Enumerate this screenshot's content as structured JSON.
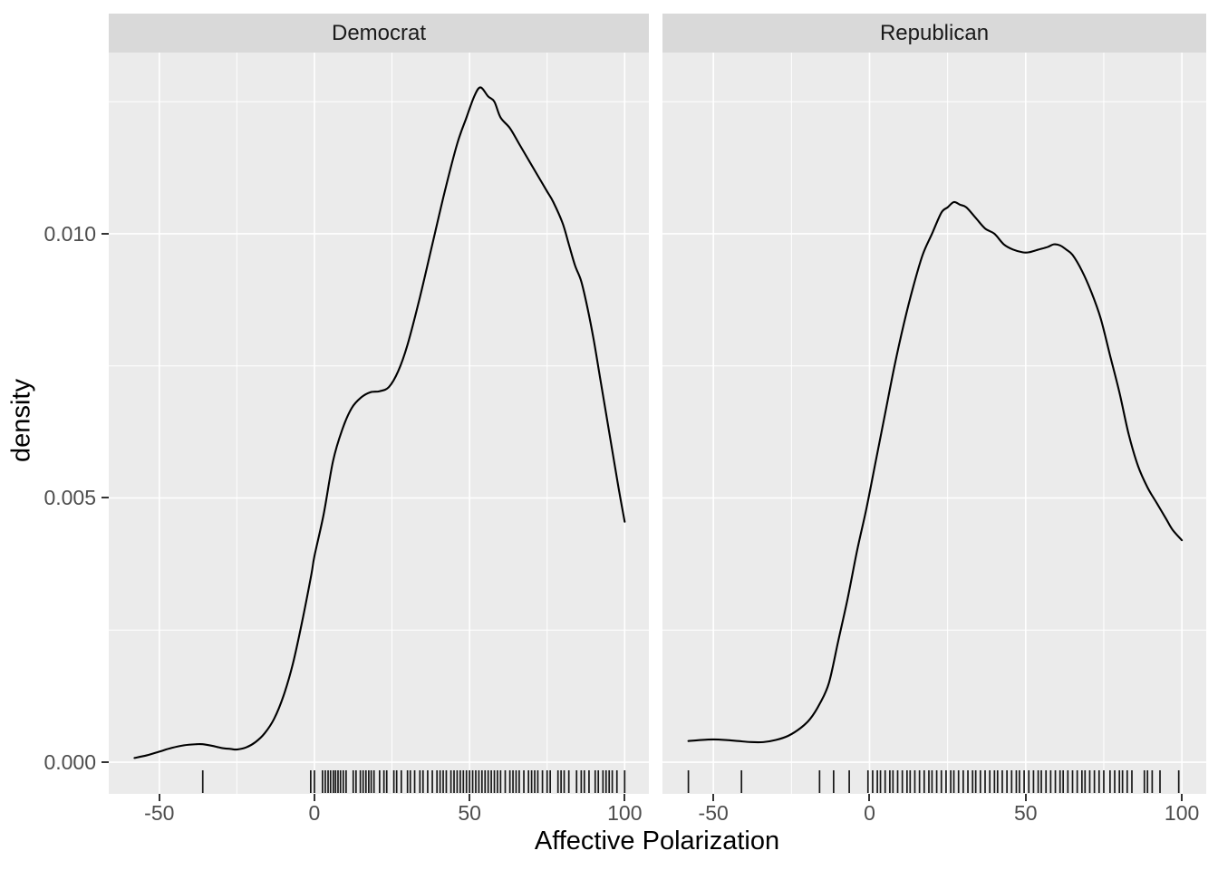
{
  "chart_data": {
    "type": "line",
    "subtype": "faceted-density-with-rug",
    "title": "",
    "xlabel": "Affective Polarization",
    "ylabel": "density",
    "grid": true,
    "legend": "none",
    "xlim": [
      -66.3,
      107.8
    ],
    "ylim": [
      -0.0006,
      0.01343
    ],
    "x_ticks": {
      "values": [
        -50,
        0,
        50,
        100
      ],
      "labels": [
        "-50",
        "0",
        "50",
        "100"
      ]
    },
    "x_minor_ticks": [
      -25,
      25,
      75
    ],
    "y_ticks": {
      "values": [
        0,
        0.005,
        0.01
      ],
      "labels": [
        "0.000",
        "0.005",
        "0.010"
      ]
    },
    "y_minor_ticks": [
      0.0025,
      0.0075,
      0.0125
    ],
    "facets": [
      {
        "label": "Democrat",
        "curve": {
          "x": [
            -58,
            -54,
            -50,
            -46,
            -42,
            -38,
            -36,
            -33,
            -30,
            -27,
            -25,
            -22,
            -19,
            -16,
            -13,
            -10,
            -7,
            -4,
            -1,
            0,
            3,
            6,
            9,
            12,
            15,
            18,
            21,
            24,
            27,
            30,
            34,
            38,
            42,
            46,
            49,
            51.5,
            53.5,
            56,
            58,
            60,
            63,
            66,
            69,
            72,
            75,
            77,
            80,
            82,
            84,
            86,
            88,
            90,
            92,
            94,
            96,
            98,
            100
          ],
          "density": [
            8e-05,
            0.00013,
            0.0002,
            0.00027,
            0.00032,
            0.00034,
            0.00034,
            0.00031,
            0.00027,
            0.00025,
            0.00024,
            0.00028,
            0.00038,
            0.00055,
            0.00082,
            0.00125,
            0.00185,
            0.00265,
            0.00355,
            0.0039,
            0.0047,
            0.0057,
            0.0063,
            0.0067,
            0.0069,
            0.007,
            0.00702,
            0.0071,
            0.0074,
            0.0079,
            0.0088,
            0.0098,
            0.0108,
            0.0117,
            0.0122,
            0.0126,
            0.01277,
            0.0126,
            0.0125,
            0.0122,
            0.012,
            0.0117,
            0.0114,
            0.0111,
            0.0108,
            0.0106,
            0.0102,
            0.0098,
            0.0094,
            0.0091,
            0.0086,
            0.008,
            0.0073,
            0.0066,
            0.0059,
            0.0052,
            0.00455
          ]
        },
        "rug": [
          -36,
          -1.2,
          0,
          2.6,
          3.5,
          4.4,
          5.2,
          6.1,
          6.8,
          7.6,
          8.4,
          9.3,
          10.2,
          12.5,
          13.4,
          14.8,
          15.7,
          16.6,
          17.5,
          18.3,
          19.2,
          21,
          22.4,
          23.3,
          25.6,
          26.5,
          28,
          30,
          30.9,
          32.3,
          34,
          35,
          36.5,
          38,
          39.5,
          40.5,
          41.5,
          42.5,
          44,
          45,
          46,
          47,
          48,
          49,
          50,
          51,
          52,
          53,
          54,
          55,
          56,
          57,
          58,
          59,
          60,
          61.5,
          63,
          64,
          65,
          66,
          67.5,
          69,
          70,
          71,
          72,
          73.5,
          75,
          76,
          78.5,
          79.5,
          80.5,
          82,
          84.5,
          86,
          87,
          88.5,
          90.5,
          91.5,
          93,
          94,
          95,
          96,
          97.5,
          100
        ]
      },
      {
        "label": "Republican",
        "curve": {
          "x": [
            -58,
            -54,
            -50,
            -46,
            -42,
            -38,
            -34,
            -30,
            -26,
            -22,
            -19,
            -16,
            -13,
            -10,
            -7,
            -4,
            -1,
            2,
            5,
            8,
            11,
            14,
            17,
            20,
            23,
            25,
            27,
            29,
            31,
            34,
            37,
            40,
            43,
            46,
            49,
            51,
            54,
            57,
            59,
            61,
            63,
            65,
            68,
            71,
            74,
            77,
            80,
            83,
            86,
            89,
            92,
            95,
            97,
            100
          ],
          "density": [
            0.0004,
            0.00042,
            0.00043,
            0.00042,
            0.0004,
            0.00038,
            0.00038,
            0.00042,
            0.0005,
            0.00065,
            0.00082,
            0.0011,
            0.0015,
            0.0023,
            0.0031,
            0.004,
            0.0048,
            0.0057,
            0.0066,
            0.0075,
            0.0083,
            0.009,
            0.0096,
            0.01,
            0.0104,
            0.0105,
            0.0106,
            0.01055,
            0.0105,
            0.0103,
            0.0101,
            0.01,
            0.0098,
            0.0097,
            0.00965,
            0.00965,
            0.0097,
            0.00975,
            0.0098,
            0.00978,
            0.0097,
            0.0096,
            0.0093,
            0.0089,
            0.0084,
            0.0077,
            0.007,
            0.0062,
            0.0056,
            0.0052,
            0.0049,
            0.0046,
            0.0044,
            0.0042
          ]
        },
        "rug": [
          -58,
          -41,
          -16,
          -11.5,
          -6.5,
          -0.5,
          1,
          2.5,
          3.5,
          5,
          6.5,
          7.5,
          9,
          10.5,
          12,
          13,
          14.5,
          16,
          17.5,
          19,
          20,
          21.5,
          23,
          24.5,
          26,
          27,
          28.5,
          30,
          31.5,
          33,
          34,
          35.5,
          37,
          38.5,
          40,
          41,
          42.5,
          44,
          45.5,
          47,
          48,
          49.5,
          51,
          52.5,
          54,
          55,
          56.5,
          58,
          59.5,
          61,
          62,
          63.5,
          65,
          66.5,
          68,
          69,
          70.5,
          72,
          73.5,
          75,
          77,
          78.5,
          80,
          81,
          82.5,
          84,
          88,
          89,
          90.5,
          93,
          99
        ]
      }
    ],
    "colors": {
      "background": "#FFFFFF",
      "panel_bg": "#EBEBEB",
      "strip_bg": "#D9D9D9",
      "gridline": "#FFFFFF",
      "curve": "#000000",
      "rug": "#000000",
      "tick_mark": "#333333",
      "tick_label": "#4D4D4D",
      "strip_text": "#1A1A1A",
      "axis_title": "#000000"
    }
  }
}
